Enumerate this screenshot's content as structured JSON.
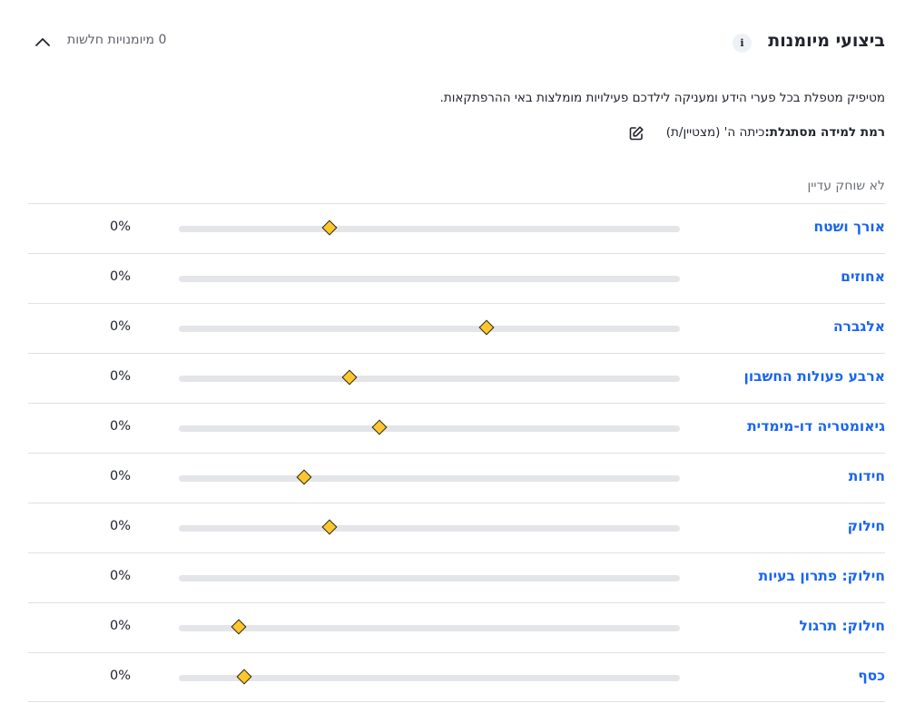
{
  "header": {
    "title": "ביצועי מיומנות",
    "info_icon": "i",
    "weak_count": "0 מיומנויות חלשות"
  },
  "description": "מטיפיק מטפלת בכל פערי הידע ומעניקה לילדכם פעילויות מומלצות באי ההרפתקאות.",
  "level": {
    "label": "רמת למידה מסתגלת:",
    "value": "כיתה ה' (מצטיין/ת)"
  },
  "not_practiced": "לא שוחק עדיין",
  "colors": {
    "accent": "#1865f2",
    "marker": "#ffc72c",
    "track": "#e4e5e8"
  },
  "skills": [
    {
      "name": "אורך ושטח",
      "percent": "0%",
      "marker": 0.3
    },
    {
      "name": "אחוזים",
      "percent": "0%",
      "marker": null
    },
    {
      "name": "אלגברה",
      "percent": "0%",
      "marker": 0.615
    },
    {
      "name": "ארבע פעולות החשבון",
      "percent": "0%",
      "marker": 0.34
    },
    {
      "name": "גיאומטריה דו-מימדית",
      "percent": "0%",
      "marker": 0.4
    },
    {
      "name": "חידות",
      "percent": "0%",
      "marker": 0.25
    },
    {
      "name": "חילוק",
      "percent": "0%",
      "marker": 0.3
    },
    {
      "name": "חילוק: פתרון בעיות",
      "percent": "0%",
      "marker": null
    },
    {
      "name": "חילוק: תרגול",
      "percent": "0%",
      "marker": 0.12
    },
    {
      "name": "כסף",
      "percent": "0%",
      "marker": 0.13
    }
  ]
}
